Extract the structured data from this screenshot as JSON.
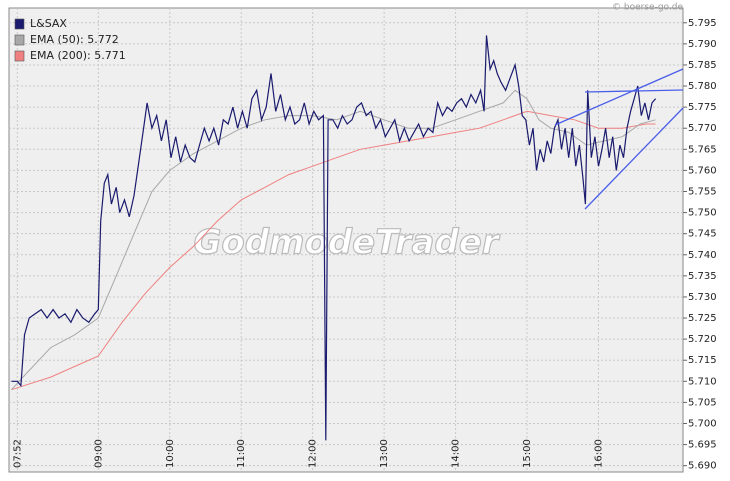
{
  "chart_data": {
    "type": "line",
    "source": "© boerse-go.de",
    "watermark": "GodmodeTrader",
    "xlim": [
      465,
      1031
    ],
    "ylim": [
      5.6885,
      5.7985
    ],
    "xticks": [
      {
        "value": 472,
        "label": "07:52"
      },
      {
        "value": 540,
        "label": "09:00"
      },
      {
        "value": 600,
        "label": "10:00"
      },
      {
        "value": 660,
        "label": "11:00"
      },
      {
        "value": 720,
        "label": "12:00"
      },
      {
        "value": 780,
        "label": "13:00"
      },
      {
        "value": 840,
        "label": "14:00"
      },
      {
        "value": 900,
        "label": "15:00"
      },
      {
        "value": 960,
        "label": "16:00"
      }
    ],
    "yticks": [
      {
        "value": 5.69,
        "label": "5.690"
      },
      {
        "value": 5.695,
        "label": "5.695"
      },
      {
        "value": 5.7,
        "label": "5.700"
      },
      {
        "value": 5.705,
        "label": "5.705"
      },
      {
        "value": 5.71,
        "label": "5.710"
      },
      {
        "value": 5.715,
        "label": "5.715"
      },
      {
        "value": 5.72,
        "label": "5.720"
      },
      {
        "value": 5.725,
        "label": "5.725"
      },
      {
        "value": 5.73,
        "label": "5.730"
      },
      {
        "value": 5.735,
        "label": "5.735"
      },
      {
        "value": 5.74,
        "label": "5.740"
      },
      {
        "value": 5.745,
        "label": "5.745"
      },
      {
        "value": 5.75,
        "label": "5.750"
      },
      {
        "value": 5.755,
        "label": "5.755"
      },
      {
        "value": 5.76,
        "label": "5.760"
      },
      {
        "value": 5.765,
        "label": "5.765"
      },
      {
        "value": 5.77,
        "label": "5.770"
      },
      {
        "value": 5.775,
        "label": "5.775"
      },
      {
        "value": 5.78,
        "label": "5.780"
      },
      {
        "value": 5.785,
        "label": "5.785"
      },
      {
        "value": 5.79,
        "label": "5.790"
      },
      {
        "value": 5.795,
        "label": "5.795"
      }
    ],
    "grid": true,
    "legend": "top-left",
    "series": [
      {
        "name": "L&SAX",
        "color": "#1a1a6e",
        "x": [
          467,
          472,
          475,
          478,
          482,
          487,
          492,
          497,
          502,
          507,
          512,
          517,
          522,
          527,
          532,
          537,
          540,
          542,
          545,
          548,
          551,
          555,
          558,
          562,
          566,
          570,
          574,
          578,
          581,
          585,
          589,
          593,
          597,
          601,
          605,
          609,
          613,
          617,
          621,
          625,
          629,
          633,
          637,
          641,
          645,
          649,
          653,
          657,
          661,
          665,
          669,
          673,
          677,
          681,
          685,
          689,
          693,
          697,
          701,
          705,
          709,
          713,
          717,
          721,
          725,
          729,
          731,
          733,
          737,
          741,
          745,
          749,
          753,
          757,
          761,
          765,
          769,
          773,
          777,
          781,
          785,
          789,
          793,
          797,
          801,
          805,
          809,
          813,
          817,
          821,
          825,
          829,
          833,
          837,
          841,
          845,
          849,
          853,
          857,
          861,
          864,
          866,
          869,
          872,
          875,
          878,
          882,
          886,
          890,
          893,
          896,
          899,
          902,
          905,
          908,
          911,
          914,
          917,
          920,
          923,
          926,
          929,
          932,
          935,
          938,
          941,
          944,
          947,
          949,
          951,
          954,
          957,
          960,
          963,
          966,
          969,
          972,
          975,
          978,
          981,
          984,
          987,
          990,
          993,
          996,
          999,
          1002,
          1005,
          1008
        ],
        "values": [
          5.71,
          5.71,
          5.709,
          5.721,
          5.725,
          5.726,
          5.727,
          5.725,
          5.727,
          5.725,
          5.726,
          5.724,
          5.727,
          5.725,
          5.724,
          5.726,
          5.727,
          5.748,
          5.757,
          5.759,
          5.752,
          5.756,
          5.75,
          5.753,
          5.749,
          5.754,
          5.762,
          5.77,
          5.776,
          5.77,
          5.773,
          5.767,
          5.772,
          5.763,
          5.768,
          5.762,
          5.766,
          5.763,
          5.762,
          5.766,
          5.77,
          5.767,
          5.77,
          5.766,
          5.772,
          5.771,
          5.775,
          5.77,
          5.774,
          5.77,
          5.777,
          5.779,
          5.772,
          5.775,
          5.783,
          5.774,
          5.778,
          5.772,
          5.775,
          5.771,
          5.772,
          5.776,
          5.771,
          5.774,
          5.772,
          5.773,
          5.696,
          5.772,
          5.772,
          5.77,
          5.773,
          5.771,
          5.772,
          5.775,
          5.776,
          5.773,
          5.774,
          5.77,
          5.772,
          5.768,
          5.77,
          5.772,
          5.767,
          5.77,
          5.767,
          5.769,
          5.771,
          5.768,
          5.77,
          5.769,
          5.776,
          5.773,
          5.775,
          5.774,
          5.776,
          5.777,
          5.775,
          5.778,
          5.776,
          5.779,
          5.774,
          5.792,
          5.784,
          5.786,
          5.783,
          5.781,
          5.779,
          5.782,
          5.785,
          5.78,
          5.773,
          5.772,
          5.766,
          5.77,
          5.76,
          5.765,
          5.762,
          5.767,
          5.764,
          5.77,
          5.772,
          5.765,
          5.77,
          5.763,
          5.77,
          5.761,
          5.766,
          5.758,
          5.752,
          5.779,
          5.763,
          5.768,
          5.761,
          5.765,
          5.77,
          5.763,
          5.768,
          5.76,
          5.766,
          5.763,
          5.77,
          5.774,
          5.777,
          5.78,
          5.773,
          5.776,
          5.772,
          5.776,
          5.777
        ]
      },
      {
        "name": "EMA (50): 5.772",
        "color": "#a8a8a8",
        "x": [
          467,
          480,
          500,
          520,
          540,
          555,
          570,
          585,
          600,
          620,
          640,
          660,
          680,
          700,
          720,
          740,
          760,
          780,
          800,
          820,
          840,
          860,
          880,
          890,
          900,
          910,
          920,
          935,
          950,
          965,
          980,
          995,
          1008
        ],
        "values": [
          5.708,
          5.712,
          5.718,
          5.721,
          5.725,
          5.735,
          5.745,
          5.755,
          5.76,
          5.764,
          5.767,
          5.77,
          5.772,
          5.773,
          5.773,
          5.772,
          5.774,
          5.772,
          5.77,
          5.77,
          5.772,
          5.774,
          5.776,
          5.779,
          5.777,
          5.772,
          5.77,
          5.769,
          5.766,
          5.767,
          5.768,
          5.771,
          5.772
        ]
      },
      {
        "name": "EMA (200): 5.771",
        "color": "#f08080",
        "x": [
          467,
          500,
          540,
          560,
          580,
          600,
          620,
          640,
          660,
          680,
          700,
          720,
          740,
          760,
          780,
          800,
          820,
          840,
          860,
          880,
          900,
          920,
          940,
          960,
          980,
          1000,
          1008
        ],
        "values": [
          5.708,
          5.711,
          5.716,
          5.724,
          5.731,
          5.737,
          5.742,
          5.748,
          5.753,
          5.756,
          5.759,
          5.761,
          5.763,
          5.765,
          5.766,
          5.767,
          5.768,
          5.769,
          5.77,
          5.772,
          5.774,
          5.773,
          5.772,
          5.77,
          5.77,
          5.771,
          5.771
        ]
      }
    ]
  }
}
